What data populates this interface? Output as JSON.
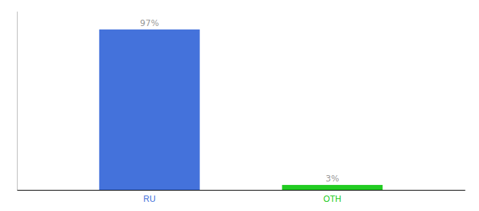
{
  "chart_data": {
    "type": "bar",
    "categories": [
      "RU",
      "OTH"
    ],
    "values": [
      97,
      3
    ],
    "value_labels": [
      "97%",
      "3%"
    ],
    "colors": [
      "#4472db",
      "#22cc22"
    ],
    "ylim": [
      0,
      108
    ],
    "data_labels": true,
    "tick_labels": "x"
  }
}
